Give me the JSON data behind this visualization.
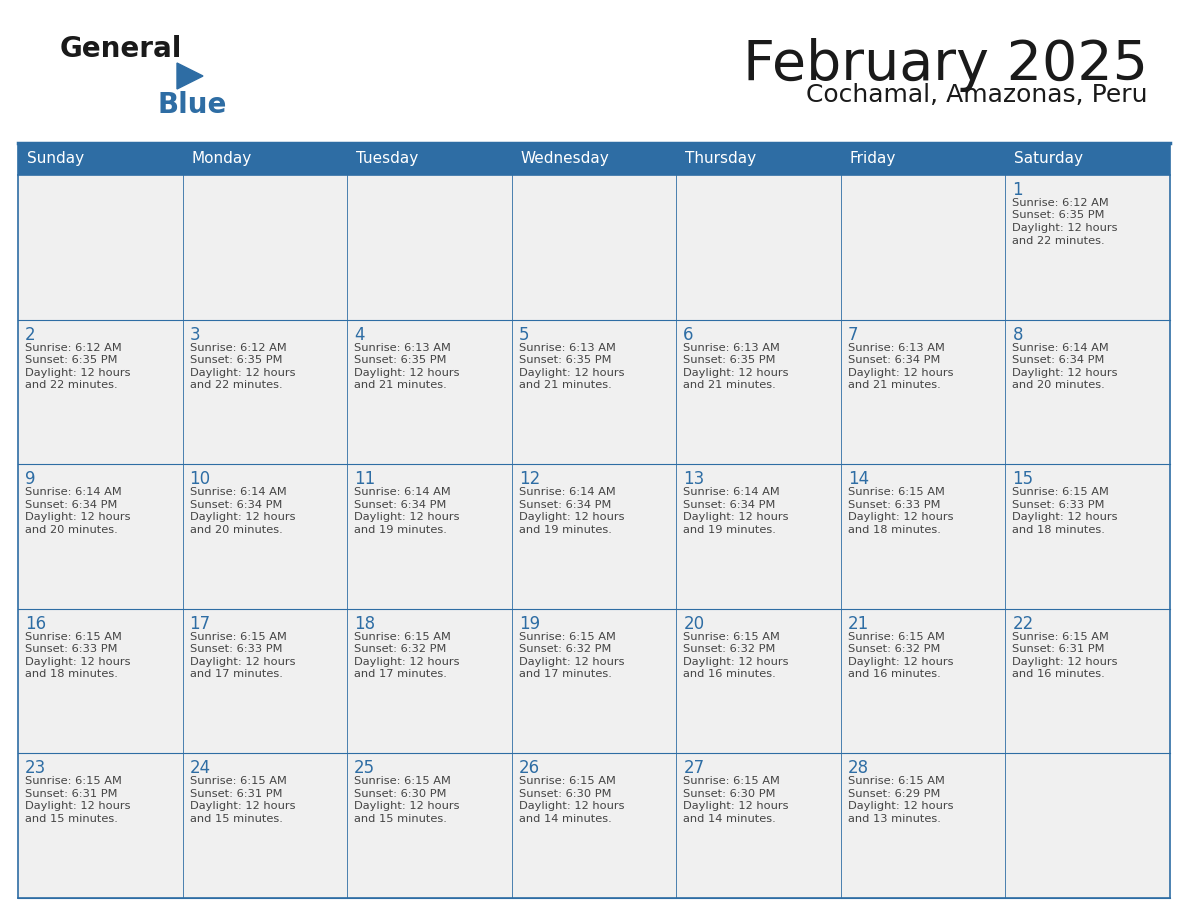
{
  "title": "February 2025",
  "subtitle": "Cochamal, Amazonas, Peru",
  "header_bg": "#2E6DA4",
  "header_text_color": "#FFFFFF",
  "cell_bg": "#F0F0F0",
  "border_color": "#2E6DA4",
  "title_color": "#1a1a1a",
  "subtitle_color": "#1a1a1a",
  "day_number_color": "#2E6DA4",
  "info_text_color": "#444444",
  "day_names": [
    "Sunday",
    "Monday",
    "Tuesday",
    "Wednesday",
    "Thursday",
    "Friday",
    "Saturday"
  ],
  "calendar": [
    [
      null,
      null,
      null,
      null,
      null,
      null,
      {
        "day": 1,
        "sunrise": "6:12 AM",
        "sunset": "6:35 PM",
        "daylight": "12 hours and 22 minutes."
      }
    ],
    [
      {
        "day": 2,
        "sunrise": "6:12 AM",
        "sunset": "6:35 PM",
        "daylight": "12 hours and 22 minutes."
      },
      {
        "day": 3,
        "sunrise": "6:12 AM",
        "sunset": "6:35 PM",
        "daylight": "12 hours and 22 minutes."
      },
      {
        "day": 4,
        "sunrise": "6:13 AM",
        "sunset": "6:35 PM",
        "daylight": "12 hours and 21 minutes."
      },
      {
        "day": 5,
        "sunrise": "6:13 AM",
        "sunset": "6:35 PM",
        "daylight": "12 hours and 21 minutes."
      },
      {
        "day": 6,
        "sunrise": "6:13 AM",
        "sunset": "6:35 PM",
        "daylight": "12 hours and 21 minutes."
      },
      {
        "day": 7,
        "sunrise": "6:13 AM",
        "sunset": "6:34 PM",
        "daylight": "12 hours and 21 minutes."
      },
      {
        "day": 8,
        "sunrise": "6:14 AM",
        "sunset": "6:34 PM",
        "daylight": "12 hours and 20 minutes."
      }
    ],
    [
      {
        "day": 9,
        "sunrise": "6:14 AM",
        "sunset": "6:34 PM",
        "daylight": "12 hours and 20 minutes."
      },
      {
        "day": 10,
        "sunrise": "6:14 AM",
        "sunset": "6:34 PM",
        "daylight": "12 hours and 20 minutes."
      },
      {
        "day": 11,
        "sunrise": "6:14 AM",
        "sunset": "6:34 PM",
        "daylight": "12 hours and 19 minutes."
      },
      {
        "day": 12,
        "sunrise": "6:14 AM",
        "sunset": "6:34 PM",
        "daylight": "12 hours and 19 minutes."
      },
      {
        "day": 13,
        "sunrise": "6:14 AM",
        "sunset": "6:34 PM",
        "daylight": "12 hours and 19 minutes."
      },
      {
        "day": 14,
        "sunrise": "6:15 AM",
        "sunset": "6:33 PM",
        "daylight": "12 hours and 18 minutes."
      },
      {
        "day": 15,
        "sunrise": "6:15 AM",
        "sunset": "6:33 PM",
        "daylight": "12 hours and 18 minutes."
      }
    ],
    [
      {
        "day": 16,
        "sunrise": "6:15 AM",
        "sunset": "6:33 PM",
        "daylight": "12 hours and 18 minutes."
      },
      {
        "day": 17,
        "sunrise": "6:15 AM",
        "sunset": "6:33 PM",
        "daylight": "12 hours and 17 minutes."
      },
      {
        "day": 18,
        "sunrise": "6:15 AM",
        "sunset": "6:32 PM",
        "daylight": "12 hours and 17 minutes."
      },
      {
        "day": 19,
        "sunrise": "6:15 AM",
        "sunset": "6:32 PM",
        "daylight": "12 hours and 17 minutes."
      },
      {
        "day": 20,
        "sunrise": "6:15 AM",
        "sunset": "6:32 PM",
        "daylight": "12 hours and 16 minutes."
      },
      {
        "day": 21,
        "sunrise": "6:15 AM",
        "sunset": "6:32 PM",
        "daylight": "12 hours and 16 minutes."
      },
      {
        "day": 22,
        "sunrise": "6:15 AM",
        "sunset": "6:31 PM",
        "daylight": "12 hours and 16 minutes."
      }
    ],
    [
      {
        "day": 23,
        "sunrise": "6:15 AM",
        "sunset": "6:31 PM",
        "daylight": "12 hours and 15 minutes."
      },
      {
        "day": 24,
        "sunrise": "6:15 AM",
        "sunset": "6:31 PM",
        "daylight": "12 hours and 15 minutes."
      },
      {
        "day": 25,
        "sunrise": "6:15 AM",
        "sunset": "6:30 PM",
        "daylight": "12 hours and 15 minutes."
      },
      {
        "day": 26,
        "sunrise": "6:15 AM",
        "sunset": "6:30 PM",
        "daylight": "12 hours and 14 minutes."
      },
      {
        "day": 27,
        "sunrise": "6:15 AM",
        "sunset": "6:30 PM",
        "daylight": "12 hours and 14 minutes."
      },
      {
        "day": 28,
        "sunrise": "6:15 AM",
        "sunset": "6:29 PM",
        "daylight": "12 hours and 13 minutes."
      },
      null
    ]
  ]
}
